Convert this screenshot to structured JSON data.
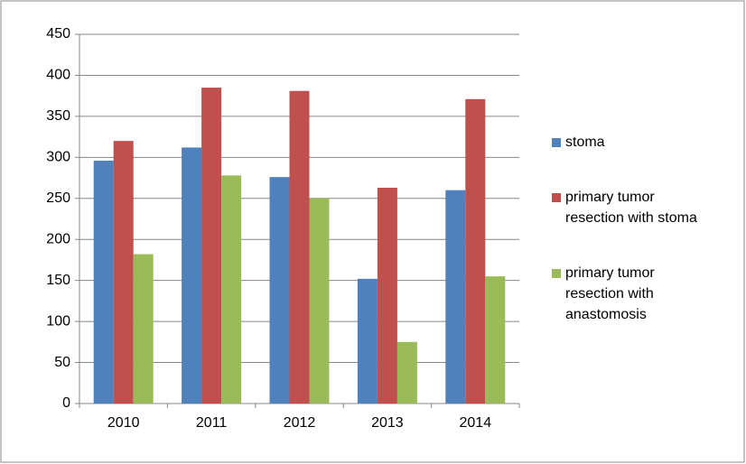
{
  "chart_data": {
    "type": "bar",
    "categories": [
      "2010",
      "2011",
      "2012",
      "2013",
      "2014"
    ],
    "series": [
      {
        "name": "stoma",
        "color": "#4f81bd",
        "values": [
          296,
          312,
          276,
          152,
          260
        ]
      },
      {
        "name": "primary tumor resection with stoma",
        "color": "#c0504d",
        "values": [
          320,
          385,
          381,
          263,
          371
        ]
      },
      {
        "name": "primary tumor resection with anastomosis",
        "color": "#9bbb59",
        "values": [
          182,
          278,
          250,
          75,
          155
        ]
      }
    ],
    "ylim": [
      0,
      450
    ],
    "yticks": [
      0,
      50,
      100,
      150,
      200,
      250,
      300,
      350,
      400,
      450
    ],
    "grid": true,
    "legend": "right"
  }
}
